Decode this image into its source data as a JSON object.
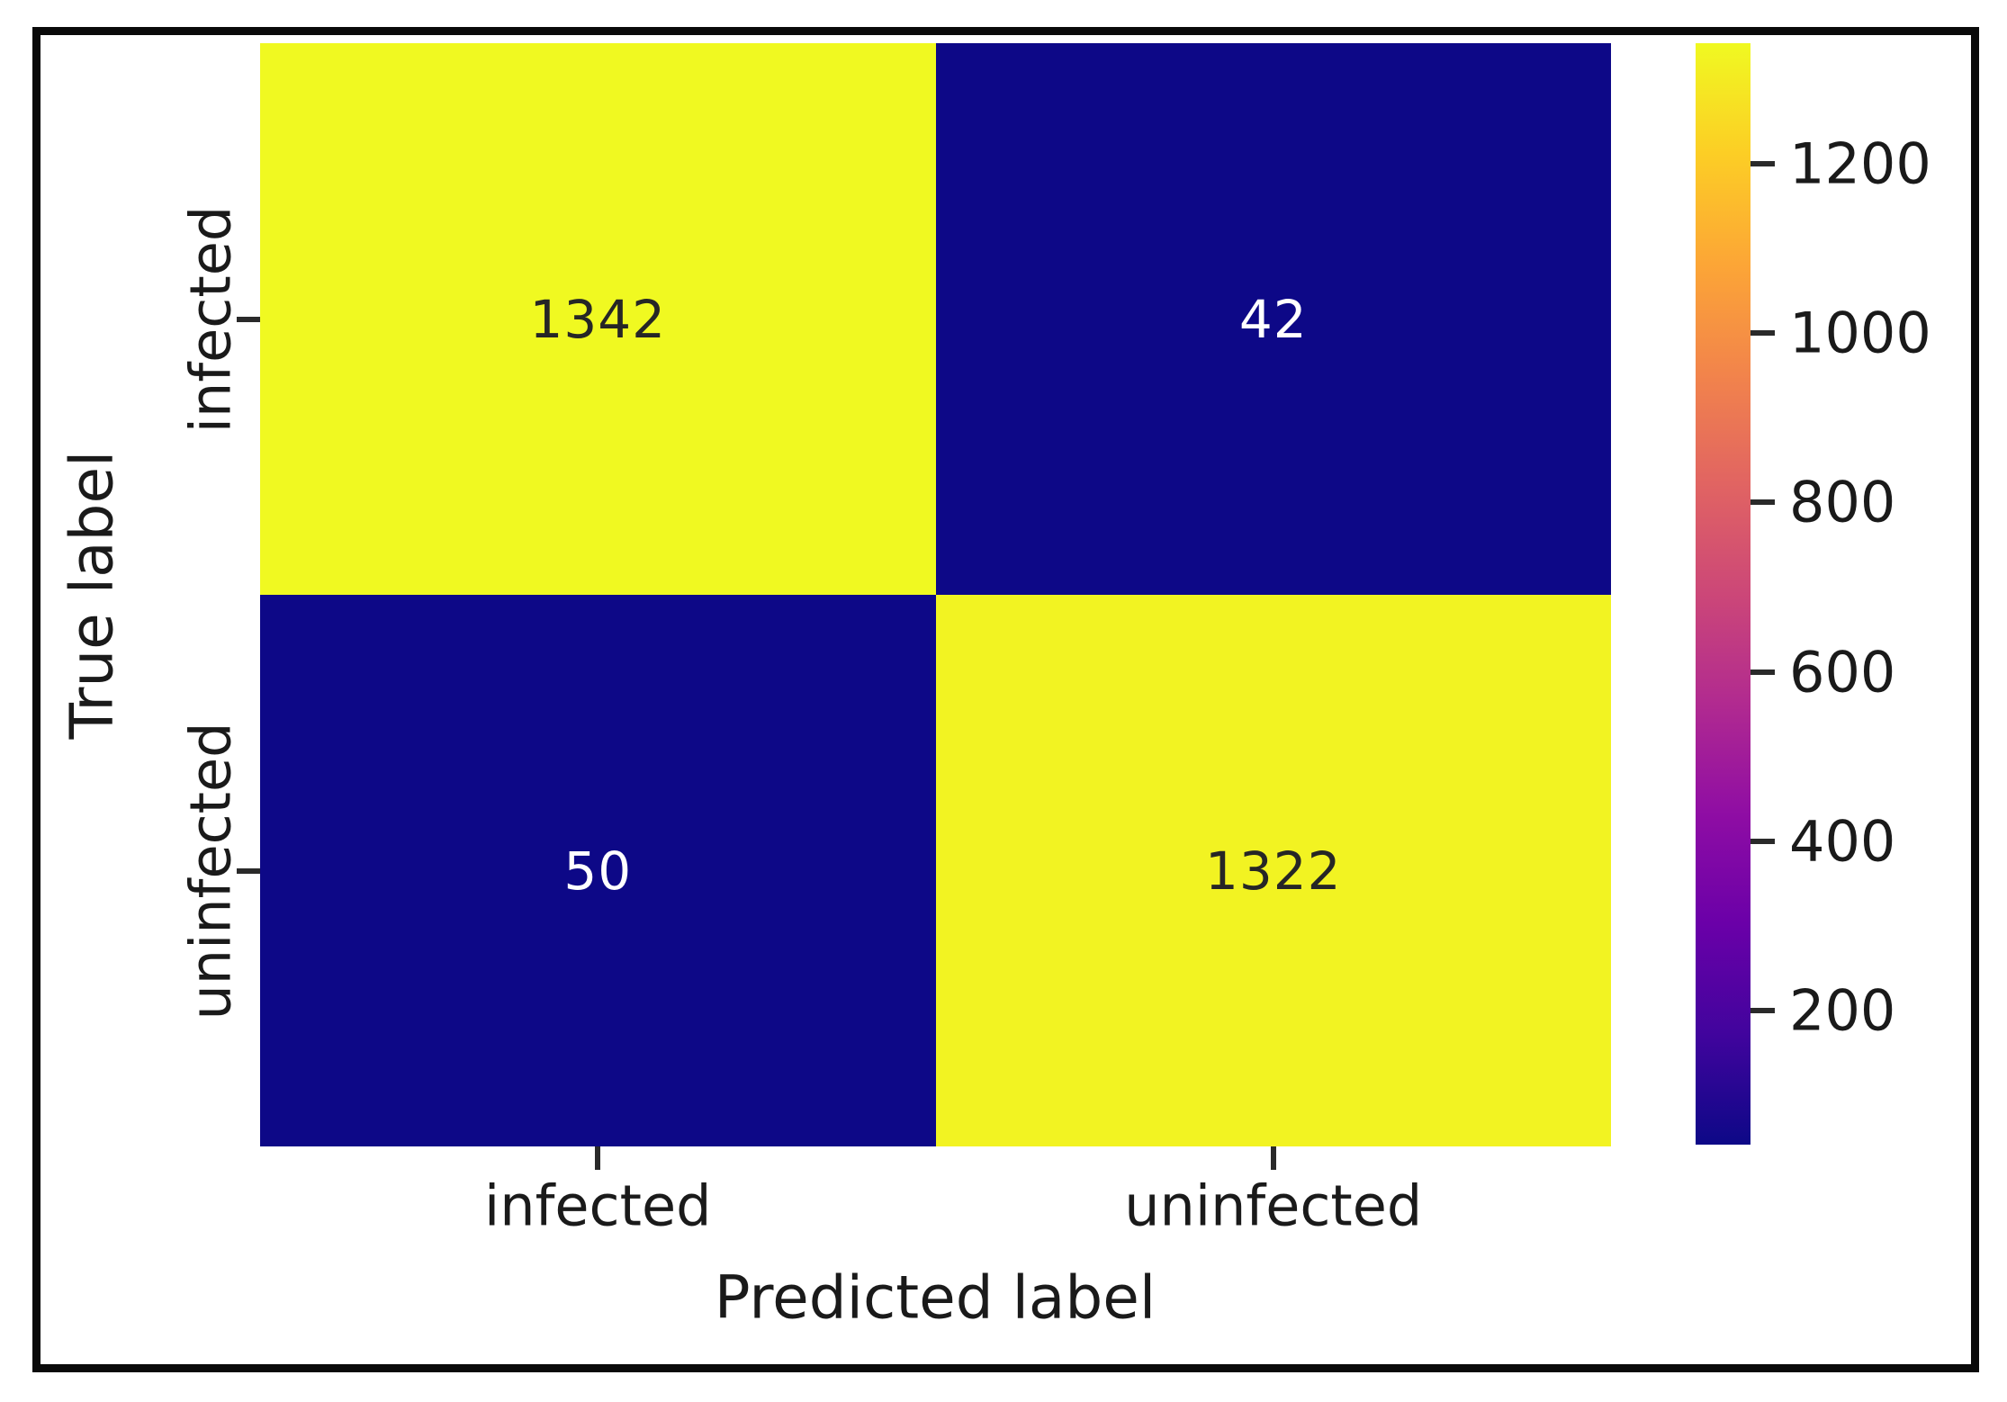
{
  "chart_data": {
    "type": "heatmap",
    "title": "",
    "xlabel": "Predicted label",
    "ylabel": "True label",
    "x_categories": [
      "infected",
      "uninfected"
    ],
    "y_categories": [
      "infected",
      "uninfected"
    ],
    "matrix": [
      [
        1342,
        42
      ],
      [
        50,
        1322
      ]
    ],
    "cell_labels": [
      [
        "1342",
        "42"
      ],
      [
        "50",
        "1322"
      ]
    ],
    "colormap": "plasma",
    "vmin": 42,
    "vmax": 1342,
    "colorbar_ticks": [
      200,
      400,
      600,
      800,
      1000,
      1200
    ],
    "colorbar_tick_labels": [
      "200",
      "400",
      "600",
      "800",
      "1000",
      "1200"
    ],
    "legend_position": "right",
    "grid": false,
    "colors": {
      "cell_colors": [
        [
          "#f0f921",
          "#0d0887"
        ],
        [
          "#0d0887",
          "#f2f322"
        ]
      ],
      "annot_colors": [
        [
          "#262626",
          "#ffffff"
        ],
        [
          "#ffffff",
          "#262626"
        ]
      ],
      "plasma_stops_bottom_to_top": [
        "#0d0887",
        "#41049d",
        "#6a00a8",
        "#8f0da4",
        "#b12a90",
        "#cc4778",
        "#e16462",
        "#f2844b",
        "#fca636",
        "#fcce25",
        "#f0f921"
      ],
      "text": "#1a1a1a",
      "frame": "#0a0a0a"
    }
  }
}
